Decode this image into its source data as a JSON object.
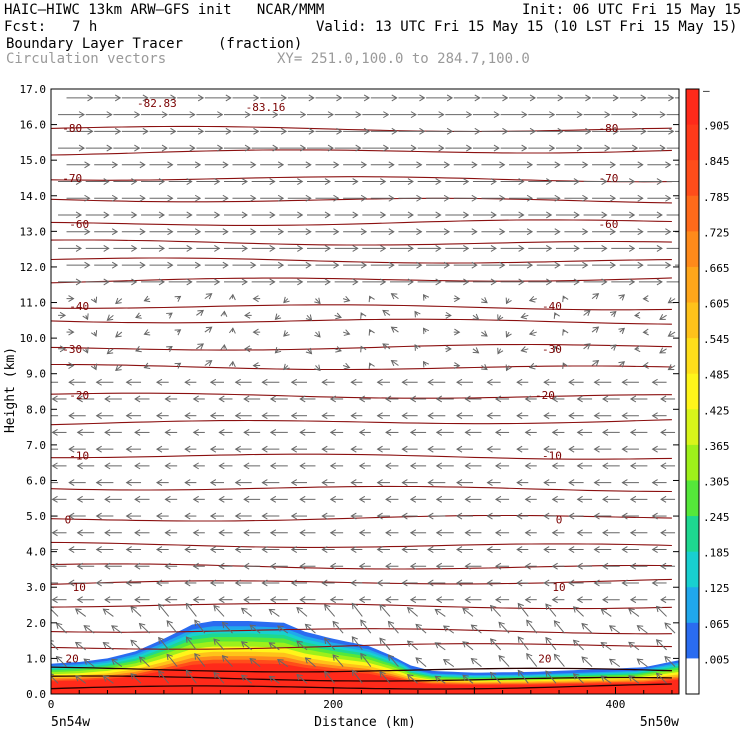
{
  "header": {
    "model": "HAIC–HIWC 13km ARW–GFS init   NCAR/MMM",
    "init": "Init: 06 UTC Fri 15 May 15",
    "fcst_label": "Fcst:",
    "fcst_value": "7 h",
    "valid": "Valid: 13 UTC Fri 15 May 15 (10 LST Fri 15 May 15)",
    "field_name": "Boundary Layer Tracer",
    "field_units": "(fraction)",
    "overlay_name": "Circulation vectors",
    "xsec": "XY= 251.0,100.0 to 284.7,100.0"
  },
  "chart_data": {
    "type": "cross-section",
    "title": "Boundary Layer Tracer",
    "units": "(fraction)",
    "xlabel": "Distance (km)",
    "ylabel": "Height (km)",
    "xlim": [
      0,
      445
    ],
    "ylim": [
      0,
      17
    ],
    "x_ticks": [
      0,
      200,
      400
    ],
    "x_tick_labels": [
      "0",
      "200",
      "400"
    ],
    "y_ticks": [
      0,
      1,
      2,
      3,
      4,
      5,
      6,
      7,
      8,
      9,
      10,
      11,
      12,
      13,
      14,
      15,
      16,
      17
    ],
    "y_tick_labels": [
      "0.0",
      "1.0",
      "2.0",
      "3.0",
      "4.0",
      "5.0",
      "6.0",
      "7.0",
      "8.0",
      "9.0",
      "10.0",
      "11.0",
      "12.0",
      "13.0",
      "14.0",
      "15.0",
      "16.0",
      "17.0"
    ],
    "left_endpoint": "5n54w",
    "right_endpoint": "5n50w",
    "colorbar": {
      "labels": [
        "–",
        ".905",
        ".845",
        ".785",
        ".725",
        ".665",
        ".605",
        ".545",
        ".485",
        ".425",
        ".365",
        ".305",
        ".245",
        ".185",
        ".125",
        ".065",
        ".005"
      ],
      "colors": [
        "#ff2a1a",
        "#ff3a1a",
        "#ff4d1a",
        "#ff6a1a",
        "#ff8a1a",
        "#ffa61a",
        "#ffc21a",
        "#ffde1a",
        "#fff51a",
        "#d8f51a",
        "#9ef01a",
        "#55e83a",
        "#1ed890",
        "#18d0d0",
        "#20a8ec",
        "#2a6cf0",
        "#ffffff"
      ]
    },
    "tracer_top_km": [
      [
        0,
        0.85
      ],
      [
        20,
        0.9
      ],
      [
        40,
        1.0
      ],
      [
        60,
        1.2
      ],
      [
        80,
        1.55
      ],
      [
        100,
        1.95
      ],
      [
        115,
        2.05
      ],
      [
        140,
        2.05
      ],
      [
        165,
        2.0
      ],
      [
        180,
        1.75
      ],
      [
        200,
        1.55
      ],
      [
        225,
        1.35
      ],
      [
        240,
        1.1
      ],
      [
        255,
        0.8
      ],
      [
        270,
        0.65
      ],
      [
        300,
        0.6
      ],
      [
        340,
        0.62
      ],
      [
        390,
        0.7
      ],
      [
        420,
        0.75
      ],
      [
        445,
        0.95
      ]
    ],
    "temperature_contours_C": [
      {
        "label": "-83.16",
        "positions_km": [
          152
        ],
        "height_km": 16.5
      },
      {
        "label": "-82.83",
        "positions_km": [
          75
        ],
        "height_km": 16.6
      },
      {
        "label": "-80",
        "positions_km": [
          15,
          395
        ],
        "height_km": 15.9
      },
      {
        "label": "-70",
        "positions_km": [
          15,
          395
        ],
        "height_km": 14.5
      },
      {
        "label": "-60",
        "positions_km": [
          20,
          395
        ],
        "height_km": 13.2
      },
      {
        "label": "-40",
        "positions_km": [
          20,
          355
        ],
        "height_km": 10.9
      },
      {
        "label": "-30",
        "positions_km": [
          15,
          355
        ],
        "height_km": 9.7
      },
      {
        "label": "-20",
        "positions_km": [
          20,
          350
        ],
        "height_km": 8.4
      },
      {
        "label": "-10",
        "positions_km": [
          20,
          355
        ],
        "height_km": 6.7
      },
      {
        "label": "0",
        "positions_km": [
          12,
          360
        ],
        "height_km": 4.9
      },
      {
        "label": "10",
        "positions_km": [
          20,
          360
        ],
        "height_km": 3.0
      },
      {
        "label": "20",
        "positions_km": [
          15,
          350
        ],
        "height_km": 1.0
      }
    ],
    "contour_line_heights_km": [
      0.15,
      0.45,
      0.7,
      1.3,
      1.8,
      2.5,
      3.1,
      3.6,
      4.2,
      4.9,
      5.8,
      6.7,
      7.6,
      8.4,
      9.2,
      9.7,
      10.5,
      10.9,
      11.6,
      12.2,
      12.7,
      13.2,
      13.9,
      14.5,
      15.2,
      15.9
    ],
    "wind_vectors": {
      "description": "westerly (left-to-right) flow above ~11 km, weak/variable 9-11 km, easterly (right-to-left) flow below ~9 km, upward motion near surface",
      "upper_westerly_above_km": 11.5,
      "lower_easterly_below_km": 9.0
    }
  }
}
